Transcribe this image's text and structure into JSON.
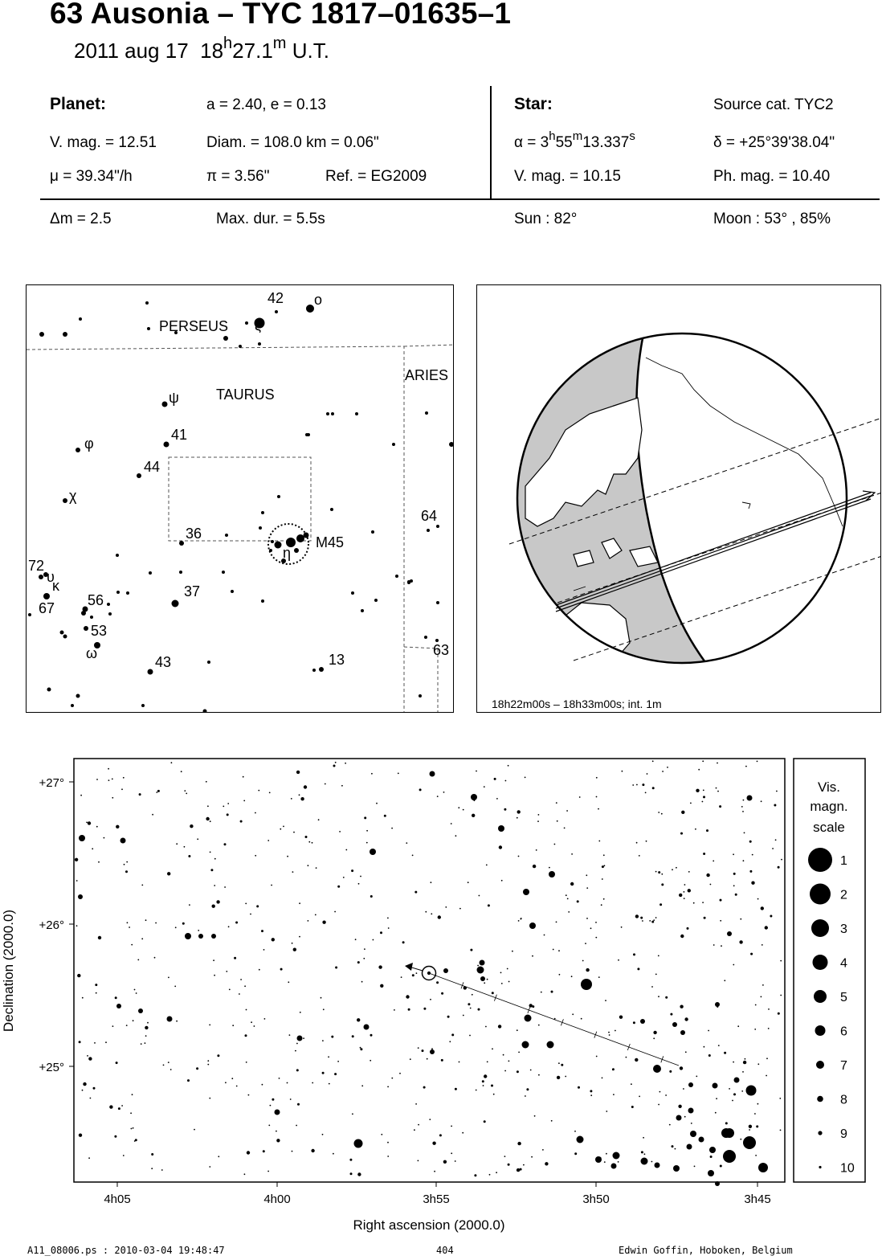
{
  "header": {
    "title": "63 Ausonia  –  TYC 1817–01635–1",
    "date": "2011 aug 17",
    "time_h": "18",
    "time_h_unit": "h",
    "time_m": "27.1",
    "time_m_unit": "m",
    "time_suffix": "U.T."
  },
  "planet": {
    "heading": "Planet:",
    "orbit": "a = 2.40, e = 0.13",
    "vmag": "V. mag. = 12.51",
    "diam": "Diam. = 108.0 km = 0.06\"",
    "mu": "μ =  39.34\"/h",
    "pi": "π =  3.56\"",
    "ref": "Ref. = EG2009"
  },
  "star": {
    "heading": "Star:",
    "source": "Source cat.  TYC2",
    "alpha_prefix": "α =  3",
    "alpha_h": "h",
    "alpha_mid": "55",
    "alpha_m": "m",
    "alpha_sec": "13.337",
    "alpha_s": "s",
    "delta": "δ = +25°39'38.04\"",
    "vmag": "V. mag. = 10.15",
    "phmag": "Ph. mag. = 10.40"
  },
  "event": {
    "dm": "Δm = 2.5",
    "maxdur": "Max. dur. = 5.5s",
    "sun": "Sun :  82°",
    "moon": "Moon :  53° , 85%"
  },
  "finder": {
    "constellations": [
      "PERSEUS",
      "TAURUS",
      "ARIES"
    ],
    "labels": [
      {
        "t": "42"
      },
      {
        "t": "ο"
      },
      {
        "t": "ζ"
      },
      {
        "t": "ψ"
      },
      {
        "t": "41"
      },
      {
        "t": "φ"
      },
      {
        "t": "44"
      },
      {
        "t": "χ"
      },
      {
        "t": "36"
      },
      {
        "t": "M45"
      },
      {
        "t": "η"
      },
      {
        "t": "64"
      },
      {
        "t": "72"
      },
      {
        "t": "υ"
      },
      {
        "t": "κ"
      },
      {
        "t": "67"
      },
      {
        "t": "56"
      },
      {
        "t": "37"
      },
      {
        "t": "53"
      },
      {
        "t": "ω"
      },
      {
        "t": "43"
      },
      {
        "t": "13"
      },
      {
        "t": "63"
      }
    ]
  },
  "globe": {
    "caption": "18h22m00s – 18h33m00s; int.  1m"
  },
  "chart": {
    "ylabel": "Declination (2000.0)",
    "xlabel": "Right ascension (2000.0)",
    "yticks": [
      "+27°",
      "+26°",
      "+25°"
    ],
    "xticks": [
      "4h05",
      "4h00",
      "3h55",
      "3h50",
      "3h45"
    ]
  },
  "scale": {
    "title_lines": [
      "Vis.",
      "magn.",
      "scale"
    ],
    "mags": [
      "1",
      "2",
      "3",
      "4",
      "5",
      "6",
      "7",
      "8",
      "9",
      "10"
    ]
  },
  "footer": {
    "file": "A11_08006.ps : 2010-03-04 19:48:47",
    "page": "404",
    "author": "Edwin Goffin, Hoboken, Belgium"
  }
}
